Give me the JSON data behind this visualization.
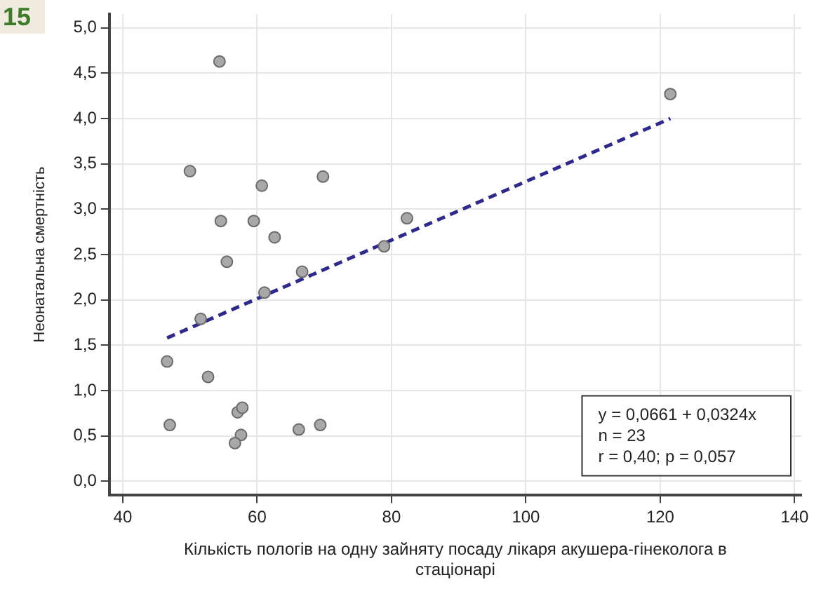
{
  "chart_data": {
    "type": "scatter",
    "title": "15",
    "xlabel": "Кількість пологів на одну зайняту посаду лікаря акушера-гінеколога в стаціонарі",
    "ylabel": "Неонатальна смертність",
    "xlim": [
      38,
      141
    ],
    "ylim": [
      -0.15,
      5.15
    ],
    "xticks": [
      40,
      60,
      80,
      100,
      120,
      140
    ],
    "yticks": [
      {
        "value": 0,
        "label": "0,0"
      },
      {
        "value": 0.5,
        "label": "0,5"
      },
      {
        "value": 1,
        "label": "1,0"
      },
      {
        "value": 1.5,
        "label": "1,5"
      },
      {
        "value": 2,
        "label": "2,0"
      },
      {
        "value": 2.5,
        "label": "2,5"
      },
      {
        "value": 3,
        "label": "3,0"
      },
      {
        "value": 3.5,
        "label": "3,5"
      },
      {
        "value": 4,
        "label": "4,0"
      },
      {
        "value": 4.5,
        "label": "4,5"
      },
      {
        "value": 5,
        "label": "5,0"
      }
    ],
    "grid": true,
    "legend": false,
    "marker": "circle",
    "series": [
      {
        "color": "#a8a8a8",
        "x": [
          54.4,
          50.0,
          60.7,
          69.8,
          54.6,
          59.5,
          62.6,
          55.5,
          66.7,
          61.1,
          78.9,
          82.3,
          121.5,
          46.6,
          51.6,
          52.7,
          47.0,
          57.1,
          57.8,
          57.6,
          56.7,
          66.2,
          69.4
        ],
        "values": [
          4.63,
          3.42,
          3.26,
          3.36,
          2.87,
          2.87,
          2.69,
          2.42,
          2.31,
          2.08,
          2.59,
          2.9,
          4.27,
          1.32,
          1.79,
          1.15,
          0.62,
          0.76,
          0.81,
          0.51,
          0.42,
          0.57,
          0.62
        ]
      },
      {
        "type": "line",
        "color": "#2e2a8a",
        "line_style": "dashed",
        "marker": "none",
        "x": [
          46.6,
          121.5
        ],
        "values": [
          1.58,
          4.0
        ]
      }
    ],
    "annotations": [
      "y = 0,0661 + 0,0324x",
      "n = 23",
      "r = 0,40; p = 0,057"
    ]
  }
}
